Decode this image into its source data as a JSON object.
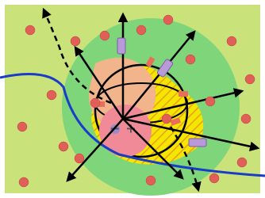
{
  "labels": {
    "minus": "−",
    "plus": "+"
  }
}
